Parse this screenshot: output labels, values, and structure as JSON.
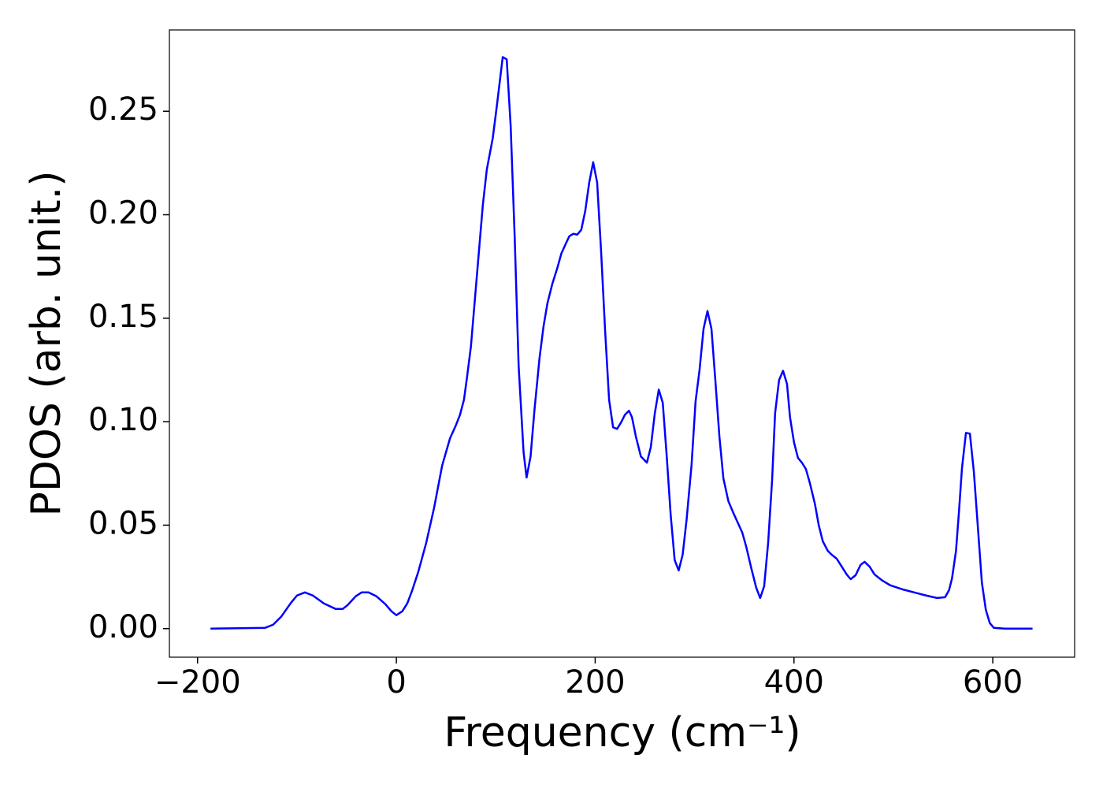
{
  "chart_data": {
    "type": "line",
    "xlabel": "Frequency (cm⁻¹)",
    "ylabel": "PDOS (arb. unit.)",
    "x": [
      -187,
      -132,
      -124,
      -116,
      -106,
      -100,
      -92,
      -84,
      -73,
      -61,
      -54,
      -49,
      -41,
      -35,
      -28,
      -20,
      -11,
      -5,
      0,
      6,
      11,
      16,
      22,
      30,
      38,
      46,
      54,
      60,
      64,
      68,
      71,
      75,
      79,
      83,
      87,
      91,
      97,
      101,
      107,
      111,
      115,
      119,
      123,
      128,
      131,
      135,
      139,
      144,
      148,
      152,
      157,
      162,
      166,
      171,
      174,
      178,
      182,
      186,
      190,
      194,
      198,
      202,
      206,
      210,
      214,
      218,
      222,
      226,
      230,
      234,
      237,
      241,
      246,
      252,
      256,
      260,
      264,
      268,
      272,
      276,
      280,
      284,
      288,
      292,
      297,
      301,
      305,
      309,
      313,
      317,
      321,
      325,
      329,
      334,
      339,
      343,
      348,
      352,
      357,
      362,
      366,
      370,
      374,
      378,
      381,
      385,
      389,
      393,
      396,
      400,
      404,
      408,
      412,
      416,
      421,
      425,
      429,
      434,
      438,
      443,
      448,
      453,
      457,
      462,
      467,
      471,
      476,
      481,
      489,
      497,
      509,
      521,
      533,
      544,
      552,
      556,
      559,
      563,
      566,
      569,
      573,
      577,
      581,
      585,
      589,
      593,
      597,
      601,
      612,
      640
    ],
    "series": [
      {
        "name": "PDOS",
        "color": "#0000ff",
        "values": [
          0,
          0.0004,
          0.0019,
          0.0057,
          0.0125,
          0.016,
          0.0175,
          0.016,
          0.0122,
          0.0095,
          0.0095,
          0.0114,
          0.0156,
          0.0175,
          0.0175,
          0.0156,
          0.0118,
          0.0084,
          0.0065,
          0.0084,
          0.0122,
          0.0186,
          0.0274,
          0.0414,
          0.0585,
          0.0787,
          0.092,
          0.0984,
          0.1033,
          0.1106,
          0.1212,
          0.1364,
          0.1592,
          0.182,
          0.2048,
          0.2219,
          0.2371,
          0.2523,
          0.2762,
          0.2751,
          0.2428,
          0.1896,
          0.1269,
          0.0851,
          0.073,
          0.0832,
          0.106,
          0.1307,
          0.1459,
          0.1573,
          0.1668,
          0.1744,
          0.1813,
          0.1866,
          0.1896,
          0.1908,
          0.1904,
          0.1927,
          0.2018,
          0.2155,
          0.2254,
          0.2155,
          0.182,
          0.144,
          0.1106,
          0.0973,
          0.0965,
          0.0996,
          0.1034,
          0.1053,
          0.1022,
          0.0927,
          0.0832,
          0.0802,
          0.0878,
          0.1041,
          0.1155,
          0.1091,
          0.0832,
          0.0547,
          0.0331,
          0.0281,
          0.0357,
          0.0528,
          0.0794,
          0.1098,
          0.125,
          0.1448,
          0.1535,
          0.1448,
          0.1193,
          0.0927,
          0.0726,
          0.0616,
          0.0559,
          0.0517,
          0.0464,
          0.0395,
          0.0293,
          0.0198,
          0.0148,
          0.0205,
          0.0414,
          0.0718,
          0.1041,
          0.1201,
          0.1246,
          0.1182,
          0.1022,
          0.0901,
          0.0825,
          0.0802,
          0.0771,
          0.0703,
          0.0604,
          0.0498,
          0.0422,
          0.0376,
          0.0357,
          0.0338,
          0.03,
          0.0262,
          0.0239,
          0.0258,
          0.0308,
          0.0323,
          0.03,
          0.0262,
          0.0232,
          0.0209,
          0.019,
          0.0175,
          0.016,
          0.0148,
          0.0152,
          0.0186,
          0.0243,
          0.0376,
          0.0566,
          0.0775,
          0.0946,
          0.0942,
          0.0756,
          0.049,
          0.0224,
          0.0091,
          0.0027,
          0.0004,
          0,
          0
        ]
      }
    ],
    "xlim": [
      -228.35,
      682.35
    ],
    "xticks": [
      {
        "value": -200,
        "label": "−200"
      },
      0,
      200,
      400,
      600
    ],
    "ylim": [
      -0.0138,
      0.2893
    ],
    "yticks": [
      {
        "value": 0,
        "label": "0.00"
      },
      0.05,
      {
        "value": 0.1,
        "label": "0.10"
      },
      0.15,
      {
        "value": 0.2,
        "label": "0.20"
      },
      0.25
    ],
    "grid": false
  }
}
